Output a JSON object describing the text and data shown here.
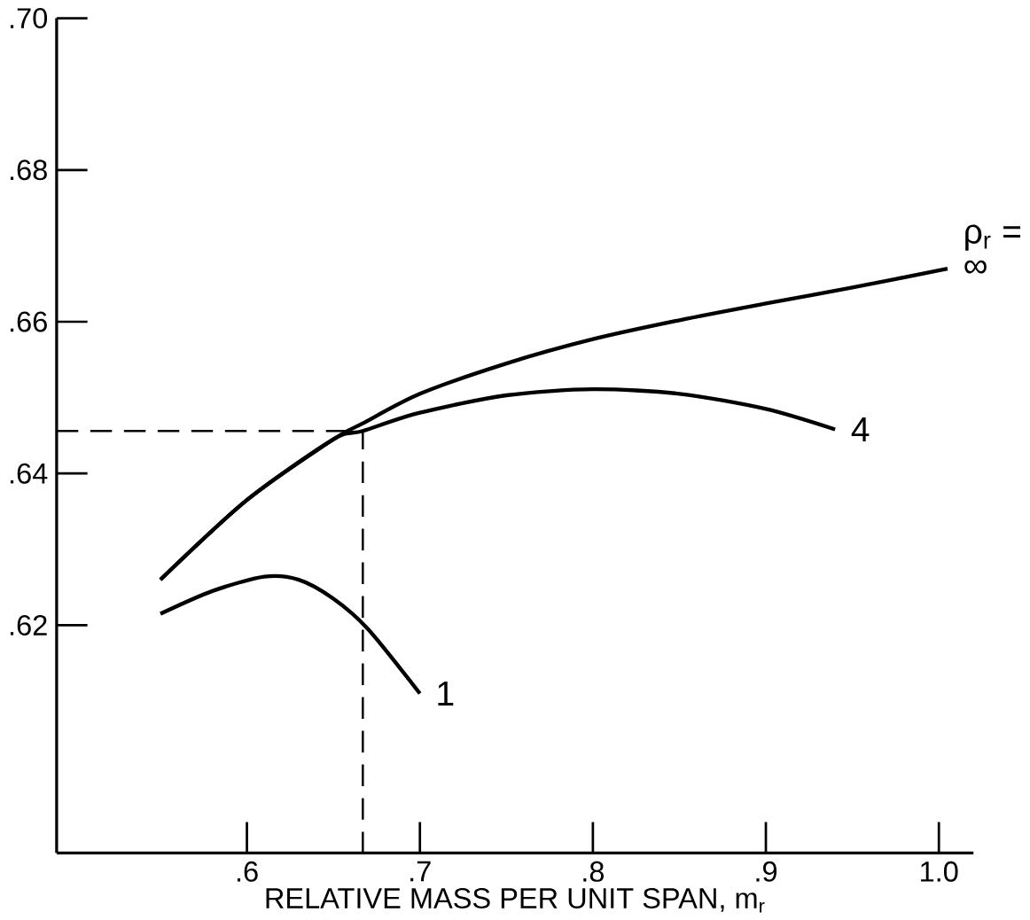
{
  "chart_data": {
    "type": "line",
    "xlabel": "RELATIVE MASS PER UNIT SPAN, m$_{r}$",
    "xlim": [
      0.49,
      1.02
    ],
    "ylim": [
      0.59,
      0.7
    ],
    "xticks": [
      {
        "value": 0.6,
        "label": ".6"
      },
      {
        "value": 0.7,
        "label": ".7"
      },
      {
        "value": 0.8,
        "label": ".8"
      },
      {
        "value": 0.9,
        "label": ".9"
      },
      {
        "value": 1.0,
        "label": "1.0"
      }
    ],
    "yticks": [
      {
        "value": 0.62,
        "label": ".62"
      },
      {
        "value": 0.64,
        "label": ".64"
      },
      {
        "value": 0.66,
        "label": ".66"
      },
      {
        "value": 0.68,
        "label": ".68"
      },
      {
        "value": 0.7,
        "label": ".70"
      }
    ],
    "grid": false,
    "legend": false,
    "marker": "none",
    "annotations": [
      "ρ$_{r}$ ="
    ],
    "series": [
      {
        "name": "∞",
        "color": "#000000",
        "line_style": "solid",
        "x": [
          0.55,
          0.6,
          0.65,
          0.667,
          0.7,
          0.75,
          0.8,
          0.85,
          0.9,
          0.95,
          1.005
        ],
        "values": [
          0.626,
          0.6365,
          0.6445,
          0.6466,
          0.6505,
          0.6545,
          0.6577,
          0.6602,
          0.6624,
          0.6645,
          0.667
        ]
      },
      {
        "name": "4",
        "color": "#000000",
        "line_style": "solid",
        "x": [
          0.55,
          0.6,
          0.65,
          0.667,
          0.7,
          0.75,
          0.8,
          0.85,
          0.9,
          0.94
        ],
        "values": [
          0.626,
          0.6365,
          0.6445,
          0.6456,
          0.648,
          0.6503,
          0.6511,
          0.6505,
          0.6485,
          0.6458
        ]
      },
      {
        "name": "1",
        "color": "#000000",
        "line_style": "solid",
        "x": [
          0.55,
          0.58,
          0.61,
          0.63,
          0.65,
          0.67,
          0.7
        ],
        "values": [
          0.6215,
          0.6245,
          0.6264,
          0.626,
          0.6235,
          0.6195,
          0.611
        ]
      },
      {
        "color": "#000000",
        "line_style": "dashed",
        "x": [
          0.49,
          0.667,
          0.667
        ],
        "values": [
          0.6456,
          0.6456,
          0.59
        ]
      }
    ]
  }
}
